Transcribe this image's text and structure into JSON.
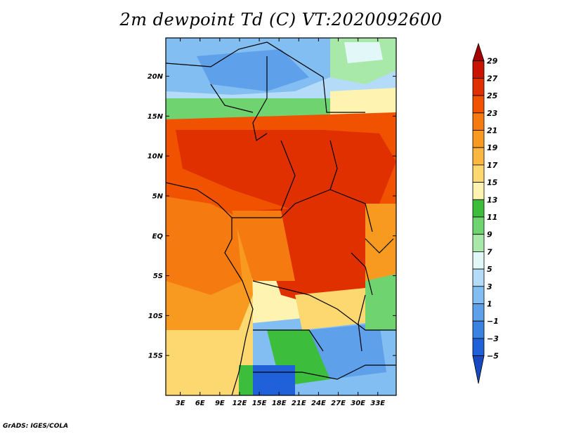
{
  "title": "2m dewpoint Td (C) VT:2020092600",
  "credit": "GrADS: IGES/COLA",
  "map": {
    "lat_labels": [
      "20N",
      "15N",
      "10N",
      "5N",
      "EQ",
      "5S",
      "10S",
      "15S"
    ],
    "lon_labels": [
      "3E",
      "6E",
      "9E",
      "12E",
      "15E",
      "18E",
      "21E",
      "24E",
      "27E",
      "30E",
      "33E"
    ],
    "lat_values": [
      20,
      15,
      10,
      5,
      0,
      -5,
      -10,
      -15
    ],
    "lon_values": [
      3,
      6,
      9,
      12,
      15,
      18,
      21,
      24,
      27,
      30,
      33
    ]
  },
  "colorbar": {
    "labels": [
      "29",
      "27",
      "25",
      "23",
      "21",
      "19",
      "17",
      "15",
      "13",
      "11",
      "9",
      "7",
      "5",
      "3",
      "1",
      "−1",
      "−3",
      "−5"
    ],
    "colors": [
      "#a50000",
      "#c81400",
      "#e03000",
      "#f05200",
      "#f57a10",
      "#f99a20",
      "#fbb840",
      "#fdd870",
      "#fef3b0",
      "#3cbe3c",
      "#6fd46f",
      "#a8e8a8",
      "#e2f8f8",
      "#b4dcf8",
      "#82bef2",
      "#5ea0ea",
      "#3a82e0",
      "#2060d8",
      "#1848c0"
    ]
  }
}
